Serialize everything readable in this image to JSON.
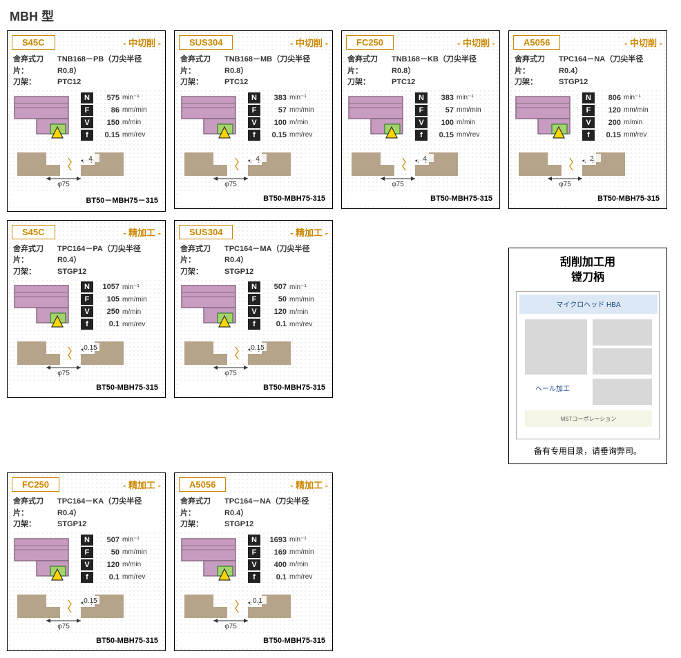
{
  "page_title": "MBH 型",
  "section_diagram": {
    "shape_fill": "#b5a38a",
    "arrow_color": "#333333",
    "dimension_color": "#333333"
  },
  "tool_diagram": {
    "body_fill": "#c89cc0",
    "body_stroke": "#8a6b84",
    "tip_fill": "#a5d36a",
    "tip_stroke": "#2e7d32",
    "triangle_fill": "#ffd500",
    "triangle_stroke": "#333333"
  },
  "cards": [
    {
      "material": "S45C",
      "operation": "- 中切削 -",
      "insert": "TNB168－PB（刀尖半径R0.8）",
      "holder": "PTC12",
      "N": "575",
      "F": "86",
      "V": "150",
      "f": "0.15",
      "phi": "φ75",
      "cut": "4",
      "model": "BT50－MBH75－315"
    },
    {
      "material": "SUS304",
      "operation": "- 中切削 -",
      "insert": "TNB168－MB（刀尖半径R0.8）",
      "holder": "PTC12",
      "N": "383",
      "F": "57",
      "V": "100",
      "f": "0.15",
      "phi": "φ75",
      "cut": "4",
      "model": "BT50-MBH75-315"
    },
    {
      "material": "FC250",
      "operation": "- 中切削 -",
      "insert": "TNB168－KB（刀尖半径R0.8）",
      "holder": "PTC12",
      "N": "383",
      "F": "57",
      "V": "100",
      "f": "0.15",
      "phi": "φ75",
      "cut": "4",
      "model": "BT50-MBH75-315"
    },
    {
      "material": "A5056",
      "operation": "- 中切削 -",
      "insert": "TPC164－NA（刀尖半径R0.4）",
      "holder": "STGP12",
      "N": "806",
      "F": "120",
      "V": "200",
      "f": "0.15",
      "phi": "φ75",
      "cut": "2",
      "model": "BT50-MBH75-315"
    },
    {
      "material": "S45C",
      "operation": "- 精加工 -",
      "insert": "TPC164－PA（刀尖半径R0.4）",
      "holder": "STGP12",
      "N": "1057",
      "F": "105",
      "V": "250",
      "f": "0.1",
      "phi": "φ75",
      "cut": "0.15",
      "model": "BT50-MBH75-315"
    },
    {
      "material": "SUS304",
      "operation": "- 精加工 -",
      "insert": "TPC164－MA（刀尖半径R0.4）",
      "holder": "STGP12",
      "N": "507",
      "F": "50",
      "V": "120",
      "f": "0.1",
      "phi": "φ75",
      "cut": "0.15",
      "model": "BT50-MBH75-315"
    },
    {
      "material": "FC250",
      "operation": "- 精加工 -",
      "insert": "TPC164－KA（刀尖半径R0.4）",
      "holder": "STGP12",
      "N": "507",
      "F": "50",
      "V": "120",
      "f": "0.1",
      "phi": "φ75",
      "cut": "0.15",
      "model": "BT50-MBH75-315"
    },
    {
      "material": "A5056",
      "operation": "- 精加工 -",
      "insert": "TPC164－NA（刀尖半径R0.4）",
      "holder": "STGP12",
      "N": "1693",
      "F": "169",
      "V": "400",
      "f": "0.1",
      "phi": "φ75",
      "cut": "0.1",
      "model": "BT50-MBH75-315"
    }
  ],
  "labels": {
    "insert_label": "舍弃式刀片：",
    "holder_label": "刀架：",
    "N_unit": "min⁻¹",
    "F_unit": "mm/min",
    "V_unit": "m/min",
    "f_unit": "mm/rev"
  },
  "side": {
    "title_line1": "刮削加工用",
    "title_line2": "镗刀柄",
    "jp_header": "マイクロヘッド  HBA",
    "jp_body": "ヘール加工",
    "jp_footer": "MSTコーポレーション",
    "note": "备有专用目录，请垂询弊司。"
  }
}
